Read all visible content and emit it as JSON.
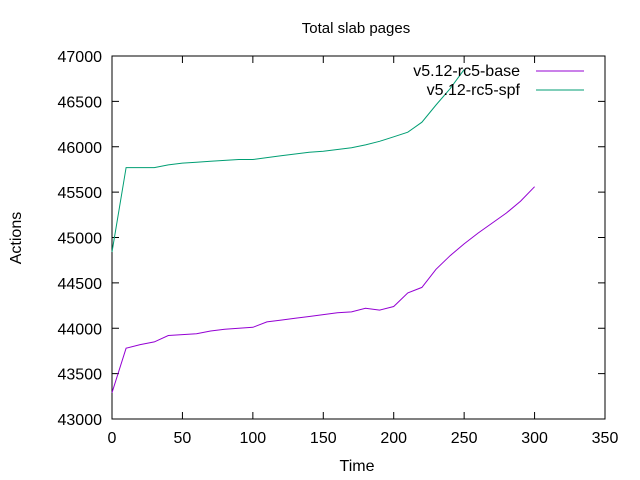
{
  "chart_data": {
    "type": "line",
    "title": "Total slab pages",
    "xlabel": "Time",
    "ylabel": "Actions",
    "xlim": [
      0,
      350
    ],
    "ylim": [
      43000,
      47000
    ],
    "x_ticks": [
      0,
      50,
      100,
      150,
      200,
      250,
      300,
      350
    ],
    "y_ticks": [
      43000,
      43500,
      44000,
      44500,
      45000,
      45500,
      46000,
      46500,
      47000
    ],
    "grid": false,
    "legend_position": "top-right",
    "series": [
      {
        "name": "v5.12-rc5-base",
        "color": "#9400d3",
        "x": [
          0,
          10,
          20,
          30,
          40,
          50,
          60,
          70,
          80,
          90,
          100,
          110,
          120,
          130,
          140,
          150,
          160,
          170,
          180,
          190,
          200,
          210,
          220,
          230,
          240,
          250,
          260,
          270,
          280,
          290,
          300
        ],
        "y": [
          43290,
          43780,
          43820,
          43850,
          43920,
          43930,
          43940,
          43970,
          43990,
          44000,
          44010,
          44070,
          44090,
          44110,
          44130,
          44150,
          44170,
          44180,
          44220,
          44200,
          44240,
          44390,
          44450,
          44650,
          44800,
          44930,
          45050,
          45160,
          45270,
          45400,
          45560
        ]
      },
      {
        "name": "v5.12-rc5-spf",
        "color": "#009e73",
        "x": [
          0,
          10,
          20,
          30,
          40,
          50,
          60,
          70,
          80,
          90,
          100,
          110,
          120,
          130,
          140,
          150,
          160,
          170,
          180,
          190,
          200,
          210,
          220,
          230,
          240,
          250
        ],
        "y": [
          44840,
          45770,
          45770,
          45770,
          45800,
          45820,
          45830,
          45840,
          45850,
          45860,
          45860,
          45880,
          45900,
          45920,
          45940,
          45950,
          45970,
          45990,
          46020,
          46060,
          46110,
          46160,
          46270,
          46460,
          46640,
          46850
        ]
      }
    ]
  }
}
